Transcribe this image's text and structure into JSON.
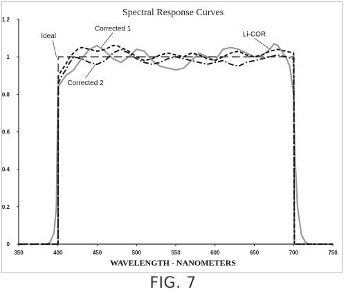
{
  "figure_caption": "FIG. 7",
  "chart_data": {
    "type": "line",
    "title": "Spectral Response Curves",
    "xlabel": "WAVELENGTH - NANOMETERS",
    "ylabel": "",
    "xlim": [
      350,
      750
    ],
    "ylim": [
      0,
      1.2
    ],
    "xticks": [
      350,
      400,
      450,
      500,
      550,
      600,
      650,
      700,
      750
    ],
    "yticks": [
      0,
      0.2,
      0.4,
      0.6,
      0.8,
      1,
      1.2
    ],
    "xtick_labels": [
      "350",
      "400",
      "450",
      "500",
      "550",
      "600",
      "650",
      "700",
      "750"
    ],
    "ytick_labels": [
      "0",
      "0.2",
      "0.4",
      "0.6",
      "0.8",
      "1",
      "1.2"
    ],
    "grid": false,
    "legend": "annotations on plot",
    "annotations": [
      {
        "text": "Ideal",
        "series": "Ideal",
        "x": 388,
        "y": 1.1
      },
      {
        "text": "Corrected 1",
        "series": "Corrected 1",
        "x": 470,
        "y": 1.14
      },
      {
        "text": "Li-COR",
        "series": "Li-COR",
        "x": 650,
        "y": 1.11
      },
      {
        "text": "Corrected 2",
        "series": "Corrected 2",
        "x": 435,
        "y": 0.85
      }
    ],
    "series": [
      {
        "name": "Ideal",
        "style": "long-dash",
        "color": "#555555",
        "x": [
          350,
          399,
          400,
          400.5,
          700,
          700.5,
          701,
          750
        ],
        "y": [
          0,
          0,
          0,
          1.0,
          1.0,
          1.0,
          0,
          0
        ]
      },
      {
        "name": "Corrected 1",
        "style": "dash",
        "color": "#111111",
        "x": [
          350,
          399,
          400,
          400.5,
          405,
          410,
          415,
          420,
          425,
          430,
          440,
          450,
          460,
          470,
          475,
          480,
          490,
          500,
          510,
          520,
          530,
          540,
          550,
          560,
          570,
          580,
          590,
          600,
          610,
          620,
          630,
          640,
          650,
          660,
          670,
          680,
          690,
          700,
          701,
          750
        ],
        "y": [
          0,
          0,
          0,
          0.9,
          0.93,
          0.96,
          1.0,
          1.02,
          1.04,
          1.05,
          1.04,
          1.03,
          1.04,
          1.06,
          1.06,
          1.05,
          1.03,
          1.0,
          0.98,
          0.99,
          1.01,
          1.02,
          1.01,
          1.0,
          1.02,
          1.01,
          0.99,
          0.98,
          1.0,
          1.02,
          1.03,
          1.01,
          1.0,
          1.01,
          1.03,
          1.04,
          1.03,
          1.02,
          0,
          0
        ]
      },
      {
        "name": "Corrected 2",
        "style": "dash-dot",
        "color": "#1a1a1a",
        "x": [
          350,
          399,
          400,
          400.5,
          405,
          410,
          415,
          420,
          430,
          440,
          450,
          460,
          470,
          480,
          490,
          500,
          510,
          520,
          530,
          540,
          550,
          560,
          570,
          580,
          590,
          600,
          610,
          620,
          630,
          640,
          650,
          660,
          670,
          680,
          690,
          700,
          701,
          750
        ],
        "y": [
          0,
          0,
          0,
          0.86,
          0.9,
          0.93,
          0.97,
          1.0,
          0.99,
          0.97,
          0.96,
          0.98,
          1.02,
          1.04,
          1.02,
          0.99,
          0.97,
          0.96,
          0.97,
          0.99,
          1.0,
          0.99,
          0.98,
          0.97,
          0.96,
          0.97,
          0.98,
          0.96,
          0.95,
          0.97,
          0.98,
          0.99,
          1.0,
          1.01,
          1.0,
          0.99,
          0,
          0
        ]
      },
      {
        "name": "Li-COR",
        "style": "solid",
        "color": "#9a9a9a",
        "x": [
          350,
          385,
          390,
          395,
          398,
          400,
          402,
          405,
          410,
          420,
          430,
          440,
          450,
          460,
          470,
          480,
          490,
          500,
          510,
          520,
          530,
          540,
          550,
          560,
          570,
          580,
          590,
          600,
          610,
          620,
          630,
          640,
          650,
          660,
          670,
          675,
          680,
          685,
          690,
          695,
          700,
          702,
          705,
          710,
          715,
          720,
          750
        ],
        "y": [
          0,
          0,
          0.01,
          0.06,
          0.2,
          0.84,
          0.85,
          0.87,
          0.9,
          0.93,
          0.99,
          1.04,
          1.06,
          1.03,
          0.99,
          0.97,
          1.0,
          1.04,
          1.03,
          0.98,
          0.95,
          0.94,
          0.93,
          0.94,
          0.98,
          1.02,
          1.0,
          0.98,
          1.04,
          1.05,
          1.04,
          1.02,
          1.0,
          1.01,
          1.04,
          1.07,
          1.06,
          1.03,
          1.0,
          0.95,
          0.8,
          0.45,
          0.2,
          0.05,
          0.01,
          0,
          0
        ]
      }
    ]
  }
}
